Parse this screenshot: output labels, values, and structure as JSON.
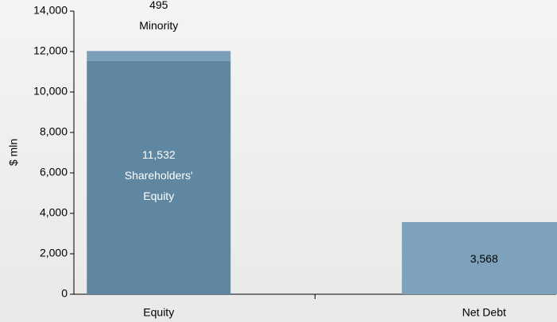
{
  "chart_data": {
    "type": "stacked_bar",
    "y_label": "$ mln",
    "categories": [
      "Equity",
      "Net Debt"
    ],
    "series": [
      {
        "name": "Shareholders' Equity",
        "color": "#5f87a2",
        "values": [
          11532,
          null
        ],
        "value_labels": [
          "11,532",
          null
        ]
      },
      {
        "name": "Minority",
        "color": "#7a9fbb",
        "values": [
          495,
          null
        ],
        "value_labels": [
          "495",
          null
        ]
      },
      {
        "color": "#7fa2bc",
        "values": [
          null,
          3568
        ],
        "value_labels": [
          null,
          "3,568"
        ]
      }
    ],
    "ylim": [
      0,
      14000
    ],
    "yticks": [
      0,
      {
        "value": 2000,
        "label": "2,000"
      },
      {
        "value": 4000,
        "label": "4,000"
      },
      {
        "value": 6000,
        "label": "6,000"
      },
      {
        "value": 8000,
        "label": "8,000"
      },
      {
        "value": 10000,
        "label": "10,000"
      },
      {
        "value": 12000,
        "label": "12,000"
      },
      {
        "value": 14000,
        "label": "14,000"
      }
    ]
  }
}
